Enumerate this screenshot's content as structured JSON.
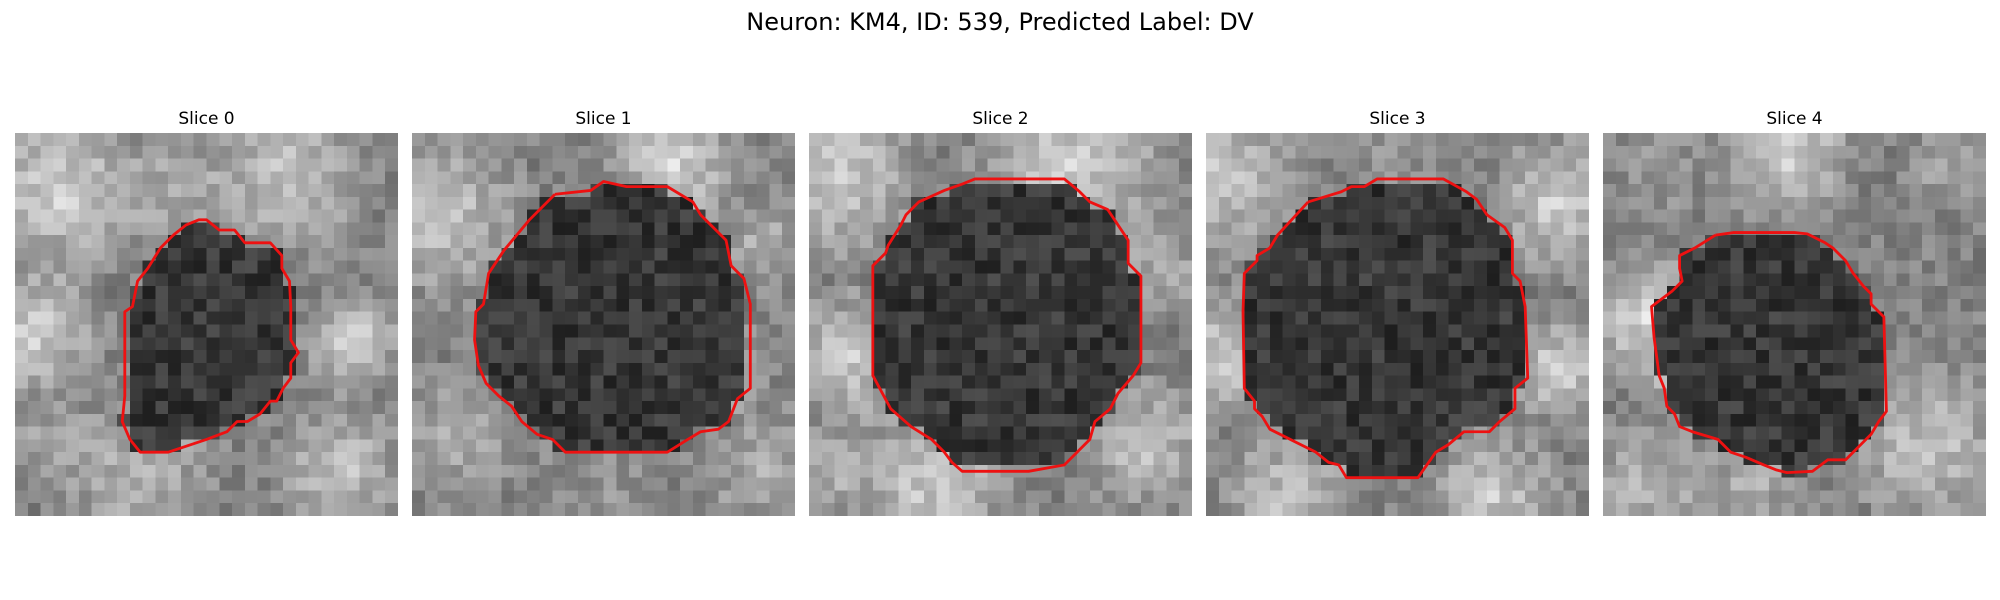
{
  "figure": {
    "title": "Neuron: KM4, ID: 539, Predicted Label: DV",
    "contour_color": "#ee1111"
  },
  "slices": [
    {
      "label": "Slice 0"
    },
    {
      "label": "Slice 1"
    },
    {
      "label": "Slice 2"
    },
    {
      "label": "Slice 3"
    },
    {
      "label": "Slice 4"
    }
  ]
}
